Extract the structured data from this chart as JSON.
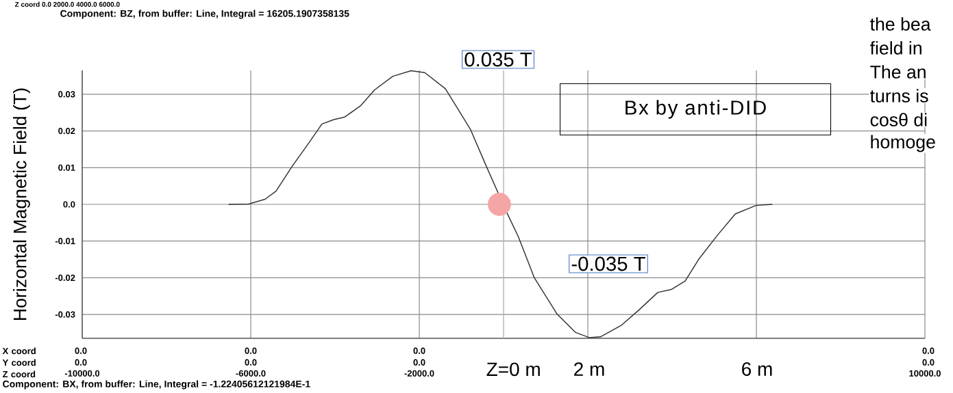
{
  "chart_data": {
    "type": "line",
    "ylabel": "Horizontal Magnetic Field (T)",
    "xlim": [
      -10000,
      10000
    ],
    "ylim": [
      -0.0365,
      0.0365
    ],
    "xticks": [
      {
        "value": -10000,
        "label": "-10000.0"
      },
      {
        "value": -6000,
        "label": "-6000.0"
      },
      {
        "value": -2000,
        "label": "-2000.0"
      },
      {
        "value": 2000,
        "label": null
      },
      {
        "value": 6000,
        "label": null
      },
      {
        "value": 10000,
        "label": "10000.0"
      }
    ],
    "yticks": [
      -0.03,
      -0.02,
      -0.01,
      {
        "value": 0,
        "label": "0.0"
      },
      0.01,
      0.02,
      0.03
    ],
    "grid": true,
    "line_style": "solid",
    "series": [
      {
        "color": "#333333",
        "x": [
          -6520,
          -6050,
          -5660,
          -5400,
          -5015,
          -4630,
          -4310,
          -4030,
          -3770,
          -3390,
          -3060,
          -2630,
          -2195,
          -1870,
          -1380,
          -785,
          -410,
          -110,
          80,
          350,
          730,
          1270,
          1710,
          2030,
          2300,
          2790,
          3220,
          3660,
          3980,
          4310,
          4630,
          5070,
          5500,
          5990,
          6370
        ],
        "values": [
          0,
          0.0001,
          0.0014,
          0.0036,
          0.0104,
          0.0166,
          0.0219,
          0.0231,
          0.0238,
          0.0269,
          0.0312,
          0.0349,
          0.0364,
          0.0359,
          0.0315,
          0.0204,
          0.0104,
          null,
          -0.0023,
          -0.0088,
          -0.02,
          -0.0299,
          -0.0349,
          -0.0363,
          -0.0361,
          -0.033,
          -0.0287,
          -0.024,
          -0.0232,
          -0.0209,
          -0.015,
          -0.0085,
          -0.0026,
          -0.0003,
          0
        ]
      },
      {
        "type": "scatter",
        "color": "#f4a6a6",
        "marker": "circle",
        "x": [
          -100
        ],
        "values": [
          0
        ]
      }
    ],
    "ref_lines": [
      {
        "axis": "x",
        "value": 0,
        "label": "Z=0 m",
        "color": "#b0b0b0"
      }
    ],
    "annotations": [
      "0.035 T",
      "-0.035 T",
      "Bx by anti-DID",
      "Component: BZ, from buffer: Line, Integral = 16205.1907358135",
      "Component: BX, from buffer: Line, Integral = -1.22405612121984E-1",
      "X coord Y coord Z coord",
      "Z coord 0.0 2000.0 4000.0 6000.0",
      "the bea",
      "field in",
      "The an",
      "turns is",
      "cosθ di",
      "homoge",
      "2 m",
      "6 m",
      "0.0 0.0",
      "0.0 0.0",
      "0.0 0.0",
      "0.0 0.0"
    ]
  }
}
